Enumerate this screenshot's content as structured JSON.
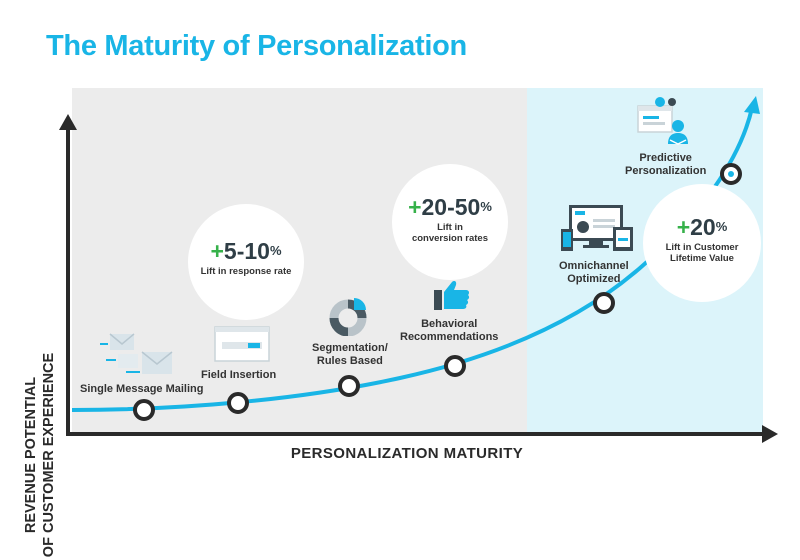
{
  "title": "The Maturity of Personalization",
  "axes": {
    "y_line1": "REVENUE POTENTIAL",
    "y_line2": "OF CUSTOMER EXPERIENCE",
    "x": "PERSONALIZATION MATURITY"
  },
  "stages": [
    {
      "label": "Single Message Mailing",
      "icon": "envelopes-icon"
    },
    {
      "label": "Field Insertion",
      "icon": "form-field-icon"
    },
    {
      "label_line1": "Segmentation/",
      "label_line2": "Rules Based",
      "icon": "donut-chart-icon"
    },
    {
      "label_line1": "Behavioral",
      "label_line2": "Recommendations",
      "icon": "thumbs-up-icon"
    },
    {
      "label_line1": "Omnichannel",
      "label_line2": "Optimized",
      "icon": "devices-icon"
    },
    {
      "label_line1": "Predictive",
      "label_line2": "Personalization",
      "icon": "gear-user-icon"
    }
  ],
  "bubbles": [
    {
      "plus": "+",
      "value": "5-10",
      "pct": "%",
      "line1": "Lift  in response rate",
      "line2": ""
    },
    {
      "plus": "+",
      "value": "20-50",
      "pct": "%",
      "line1": "Lift in",
      "line2": "conversion rates"
    },
    {
      "plus": "+",
      "value": "20",
      "pct": "%",
      "line1": "Lift  in Customer",
      "line2": "Lifetime Value"
    }
  ],
  "colors": {
    "accent": "#19b5e6",
    "plus": "#36b14a",
    "gray_panel": "#ececec",
    "blue_panel": "#dcf4fa"
  }
}
